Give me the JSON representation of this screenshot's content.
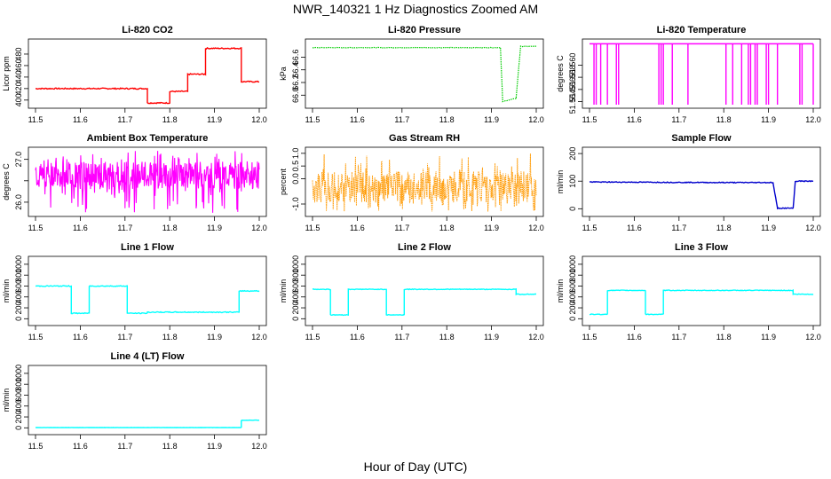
{
  "figure": {
    "title": "NWR_140321  1 Hz Diagnostics Zoomed AM",
    "xlabel": "Hour of Day (UTC)"
  },
  "chart_data": [
    {
      "id": "co2",
      "type": "line",
      "title": "Li-820 CO2",
      "ylabel": "Licor ppm",
      "color": "#ff0000",
      "style": "line",
      "noise": 1,
      "x": [
        11.5,
        11.75,
        11.75,
        11.8,
        11.8,
        11.84,
        11.84,
        11.88,
        11.88,
        11.96,
        11.96,
        12.0
      ],
      "y": [
        420,
        420,
        395,
        395,
        415,
        415,
        445,
        445,
        490,
        490,
        432,
        432
      ],
      "xlim": [
        11.5,
        12.0
      ],
      "ylim": [
        392,
        500
      ],
      "xticks": [
        11.5,
        11.6,
        11.7,
        11.8,
        11.9,
        12.0
      ],
      "xticklabels": [
        "11.5",
        "11.6",
        "11.7",
        "11.8",
        "11.9",
        "12.0"
      ],
      "yticks": [
        400,
        420,
        440,
        460,
        480
      ],
      "yticklabels": [
        "400",
        "420",
        "440",
        "460",
        "480"
      ]
    },
    {
      "id": "pressure",
      "type": "line",
      "title": "Li-820 Pressure",
      "ylabel": "kPa",
      "color": "#00cc00",
      "style": "dotted",
      "noise": 0.004,
      "x": [
        11.5,
        11.92,
        11.925,
        11.955,
        11.965,
        12.0
      ],
      "y": [
        66.75,
        66.75,
        65.9,
        65.95,
        66.77,
        66.77
      ],
      "xlim": [
        11.5,
        12.0
      ],
      "ylim": [
        65.85,
        66.83
      ],
      "xticks": [
        11.5,
        11.6,
        11.7,
        11.8,
        11.9,
        12.0
      ],
      "xticklabels": [
        "11.5",
        "11.6",
        "11.7",
        "11.8",
        "11.9",
        "12.0"
      ],
      "yticks": [
        66.0,
        66.2,
        66.4,
        66.6
      ],
      "yticklabels": [
        "66.0",
        "66.2",
        "66.4",
        "66.6"
      ]
    },
    {
      "id": "temperature",
      "type": "line",
      "title": "Li-820 Temperature",
      "ylabel": "degrees C",
      "color": "#ff00ff",
      "style": "spikes",
      "x": [
        11.5,
        12.0
      ],
      "y": [
        51.5635,
        51.5635
      ],
      "spikes": [
        11.51,
        11.515,
        11.525,
        11.54,
        11.56,
        11.565,
        11.655,
        11.66,
        11.665,
        11.685,
        11.72,
        11.805,
        11.82,
        11.84,
        11.855,
        11.86,
        11.87,
        11.875,
        11.895,
        11.9,
        11.92,
        11.97,
        11.975,
        12.0
      ],
      "spike_low": 51.5535,
      "xlim": [
        11.5,
        12.0
      ],
      "ylim": [
        51.5535,
        51.5637
      ],
      "xticks": [
        11.5,
        11.6,
        11.7,
        11.8,
        11.9,
        12.0
      ],
      "xticklabels": [
        "11.5",
        "11.6",
        "11.7",
        "11.8",
        "11.9",
        "12.0"
      ],
      "yticks": [
        51.554,
        51.556,
        51.558,
        51.56
      ],
      "yticklabels": [
        "51.554",
        "51.556",
        "51.558",
        "51.560"
      ]
    },
    {
      "id": "ambient",
      "type": "line",
      "title": "Ambient Box Temperature",
      "ylabel": "degrees C",
      "color": "#ff00ff",
      "style": "band",
      "x": [
        11.5,
        12.0
      ],
      "y": [
        26.6,
        26.6
      ],
      "band": [
        26.3,
        26.95
      ],
      "spike_extent": [
        25.75,
        27.2
      ],
      "xlim": [
        11.5,
        12.0
      ],
      "ylim": [
        25.75,
        27.2
      ],
      "xticks": [
        11.5,
        11.6,
        11.7,
        11.8,
        11.9,
        12.0
      ],
      "xticklabels": [
        "11.5",
        "11.6",
        "11.7",
        "11.8",
        "11.9",
        "12.0"
      ],
      "yticks": [
        26.0,
        26.5,
        27.0
      ],
      "yticklabels": [
        "26.0",
        "",
        "27.0"
      ]
    },
    {
      "id": "rh",
      "type": "line",
      "title": "Gas Stream RH",
      "ylabel": "percent",
      "color": "#ff9900",
      "style": "noisy",
      "x": [
        11.5,
        12.0
      ],
      "y": [
        -0.35,
        -0.35
      ],
      "band": [
        -1.0,
        0.3
      ],
      "spike_extent": [
        -1.3,
        1.0
      ],
      "xlim": [
        11.5,
        12.0
      ],
      "ylim": [
        -1.35,
        1.1
      ],
      "xticks": [
        11.5,
        11.6,
        11.7,
        11.8,
        11.9,
        12.0
      ],
      "xticklabels": [
        "11.5",
        "11.6",
        "11.7",
        "11.8",
        "11.9",
        "12.0"
      ],
      "yticks": [
        -1.0,
        0.0,
        0.5,
        1.0
      ],
      "yticklabels": [
        "-1.0",
        "0.0",
        "0.5",
        "1.0"
      ]
    },
    {
      "id": "sample_flow",
      "type": "line",
      "title": "Sample Flow",
      "ylabel": "ml/min",
      "color": "#0000cc",
      "style": "line",
      "noise": 1.5,
      "x": [
        11.5,
        11.8,
        11.91,
        11.92,
        11.955,
        11.96,
        12.0
      ],
      "y": [
        97,
        95,
        95,
        2,
        2,
        100,
        100
      ],
      "xlim": [
        11.5,
        12.0
      ],
      "ylim": [
        -15,
        210
      ],
      "xticks": [
        11.5,
        11.6,
        11.7,
        11.8,
        11.9,
        12.0
      ],
      "xticklabels": [
        "11.5",
        "11.6",
        "11.7",
        "11.8",
        "11.9",
        "12.0"
      ],
      "yticks": [
        0,
        100,
        200
      ],
      "yticklabels": [
        "0",
        "100",
        "200"
      ]
    },
    {
      "id": "line1",
      "type": "line",
      "title": "Line 1 Flow",
      "ylabel": "ml/min",
      "color": "#00ffff",
      "style": "line",
      "noise": 8,
      "x": [
        11.5,
        11.58,
        11.58,
        11.62,
        11.62,
        11.705,
        11.705,
        11.75,
        11.75,
        11.955,
        11.955,
        12.0
      ],
      "y": [
        600,
        600,
        100,
        100,
        600,
        600,
        100,
        100,
        120,
        120,
        510,
        510
      ],
      "xlim": [
        11.5,
        12.0
      ],
      "ylim": [
        -60,
        1080
      ],
      "xticks": [
        11.5,
        11.6,
        11.7,
        11.8,
        11.9,
        12.0
      ],
      "xticklabels": [
        "11.5",
        "11.6",
        "11.7",
        "11.8",
        "11.9",
        "12.0"
      ],
      "yticks": [
        0,
        200,
        400,
        600,
        800,
        1000
      ],
      "yticklabels": [
        "0",
        "200",
        "400",
        "600",
        "800",
        "1000"
      ]
    },
    {
      "id": "line2",
      "type": "line",
      "title": "Line 2 Flow",
      "ylabel": "ml/min",
      "color": "#00ffff",
      "style": "line",
      "noise": 6,
      "x": [
        11.5,
        11.54,
        11.54,
        11.58,
        11.58,
        11.665,
        11.665,
        11.705,
        11.705,
        11.955,
        11.955,
        12.0
      ],
      "y": [
        540,
        540,
        70,
        70,
        540,
        540,
        70,
        70,
        540,
        540,
        450,
        450
      ],
      "xlim": [
        11.5,
        12.0
      ],
      "ylim": [
        -60,
        1080
      ],
      "xticks": [
        11.5,
        11.6,
        11.7,
        11.8,
        11.9,
        12.0
      ],
      "xticklabels": [
        "11.5",
        "11.6",
        "11.7",
        "11.8",
        "11.9",
        "12.0"
      ],
      "yticks": [
        0,
        200,
        400,
        600,
        800,
        1000
      ],
      "yticklabels": [
        "0",
        "200",
        "400",
        "600",
        "800",
        "1000"
      ]
    },
    {
      "id": "line3",
      "type": "line",
      "title": "Line 3 Flow",
      "ylabel": "ml/min",
      "color": "#00ffff",
      "style": "line",
      "noise": 6,
      "x": [
        11.5,
        11.54,
        11.54,
        11.625,
        11.625,
        11.665,
        11.665,
        11.955,
        11.955,
        12.0
      ],
      "y": [
        80,
        80,
        520,
        520,
        80,
        80,
        520,
        520,
        450,
        450
      ],
      "xlim": [
        11.5,
        12.0
      ],
      "ylim": [
        -60,
        1080
      ],
      "xticks": [
        11.5,
        11.6,
        11.7,
        11.8,
        11.9,
        12.0
      ],
      "xticklabels": [
        "11.5",
        "11.6",
        "11.7",
        "11.8",
        "11.9",
        "12.0"
      ],
      "yticks": [
        0,
        200,
        400,
        600,
        800,
        1000
      ],
      "yticklabels": [
        "0",
        "200",
        "400",
        "600",
        "800",
        "1000"
      ]
    },
    {
      "id": "line4",
      "type": "line",
      "title": "Line 4 (LT) Flow",
      "ylabel": "ml/min",
      "color": "#00ffff",
      "style": "line",
      "noise": 2,
      "x": [
        11.5,
        11.96,
        11.96,
        12.0
      ],
      "y": [
        5,
        5,
        140,
        140
      ],
      "xlim": [
        11.5,
        12.0
      ],
      "ylim": [
        -60,
        1080
      ],
      "xticks": [
        11.5,
        11.6,
        11.7,
        11.8,
        11.9,
        12.0
      ],
      "xticklabels": [
        "11.5",
        "11.6",
        "11.7",
        "11.8",
        "11.9",
        "12.0"
      ],
      "yticks": [
        0,
        200,
        400,
        600,
        800,
        1000
      ],
      "yticklabels": [
        "0",
        "200",
        "400",
        "600",
        "800",
        "1000"
      ]
    }
  ]
}
